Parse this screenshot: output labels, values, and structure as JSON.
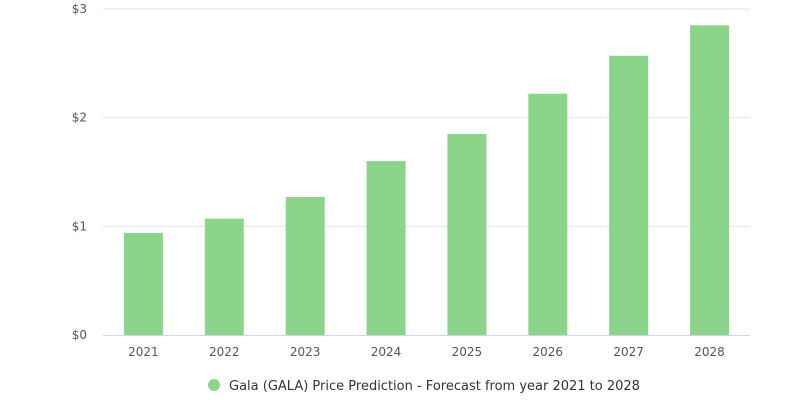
{
  "chart_data": {
    "type": "bar",
    "title": "",
    "xlabel": "",
    "ylabel": "",
    "categories": [
      "2021",
      "2022",
      "2023",
      "2024",
      "2025",
      "2026",
      "2027",
      "2028"
    ],
    "series": [
      {
        "name": "Gala (GALA) Price Prediction - Forecast from year 2021 to 2028",
        "values": [
          0.94,
          1.07,
          1.27,
          1.6,
          1.85,
          2.22,
          2.57,
          2.85
        ],
        "color": "#8ad58a"
      }
    ],
    "ylim": [
      0,
      3
    ],
    "yticks": [
      0,
      1,
      2,
      3
    ],
    "ytick_labels": [
      "$0",
      "$1",
      "$2",
      "$3"
    ],
    "grid": true,
    "legend_position": "bottom-center"
  }
}
